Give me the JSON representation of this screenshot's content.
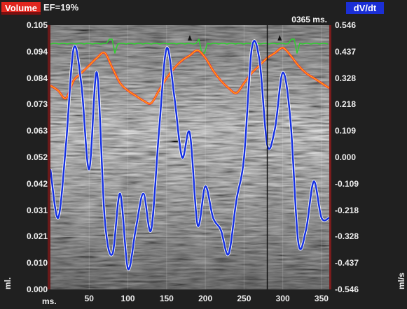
{
  "header": {
    "volume_label": "Volume",
    "ef_text": "EF=19%",
    "dvdt_label": "dV/dt",
    "time_readout": "0365 ms."
  },
  "axes": {
    "left_ticks": [
      "0.105",
      "0.094",
      "0.084",
      "0.073",
      "0.063",
      "0.052",
      "0.042",
      "0.031",
      "0.021",
      "0.010",
      "0.000"
    ],
    "right_ticks": [
      "0.546",
      "0.437",
      "0.328",
      "0.218",
      "0.109",
      "0.000",
      "-0.109",
      "-0.218",
      "-0.328",
      "-0.437",
      "-0.546"
    ],
    "x_ticks": [
      "50",
      "100",
      "150",
      "200",
      "250",
      "300",
      "350"
    ],
    "x_unit": "ms.",
    "left_unit": "ml.",
    "right_unit": "ml/s"
  },
  "colors": {
    "volume": "#ff3030",
    "volume_core": "#ffcc00",
    "dvdt": "#1530e0",
    "ecg": "#30d030",
    "cursor": "#101010"
  },
  "chart_data": {
    "type": "line",
    "x": [
      0,
      10,
      20,
      30,
      40,
      50,
      60,
      70,
      80,
      90,
      100,
      110,
      120,
      130,
      140,
      150,
      160,
      170,
      180,
      190,
      200,
      210,
      220,
      230,
      240,
      250,
      260,
      270,
      280,
      290,
      300,
      310,
      320,
      330,
      340,
      350,
      360
    ],
    "series": [
      {
        "name": "Volume",
        "axis": "left",
        "values": [
          0.081,
          0.079,
          0.076,
          0.083,
          0.086,
          0.089,
          0.092,
          0.094,
          0.088,
          0.082,
          0.079,
          0.077,
          0.075,
          0.074,
          0.079,
          0.084,
          0.088,
          0.091,
          0.093,
          0.095,
          0.092,
          0.087,
          0.083,
          0.08,
          0.078,
          0.082,
          0.086,
          0.089,
          0.092,
          0.094,
          0.096,
          0.093,
          0.089,
          0.086,
          0.084,
          0.082,
          0.08
        ]
      },
      {
        "name": "dV/dt",
        "axis": "right",
        "values": [
          -0.05,
          -0.25,
          0.05,
          0.45,
          0.3,
          -0.05,
          0.35,
          -0.25,
          -0.4,
          -0.15,
          -0.46,
          -0.3,
          -0.15,
          -0.3,
          0.1,
          0.45,
          0.25,
          0.0,
          0.1,
          -0.28,
          -0.12,
          -0.25,
          -0.3,
          -0.4,
          -0.18,
          0.0,
          0.45,
          0.4,
          0.05,
          0.12,
          0.35,
          0.15,
          -0.35,
          -0.3,
          -0.1,
          -0.25,
          -0.25
        ]
      }
    ],
    "ylim_left": [
      0.0,
      0.105
    ],
    "ylim_right": [
      -0.546,
      0.546
    ],
    "xlim": [
      0,
      360
    ],
    "cursor_x": 280
  }
}
